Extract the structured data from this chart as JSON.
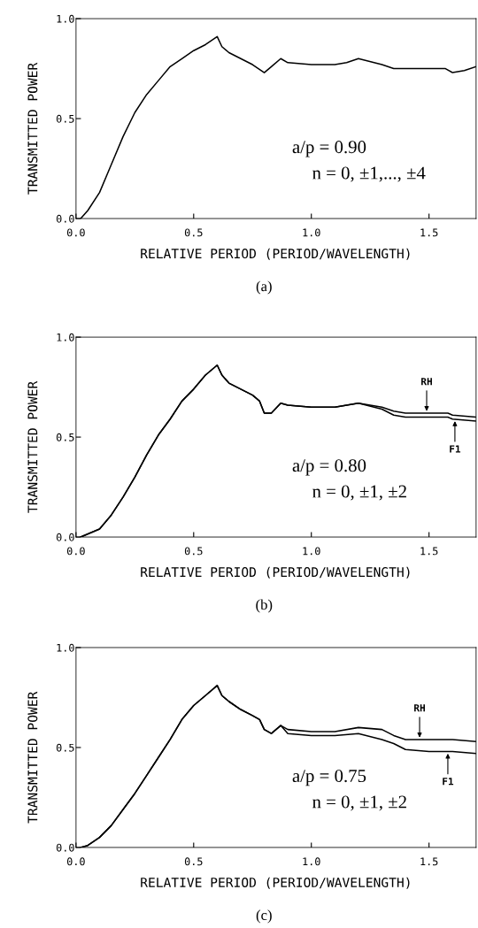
{
  "chart_data": [
    {
      "type": "line",
      "xlabel": "RELATIVE PERIOD (PERIOD/WAVELENGTH)",
      "ylabel": "TRANSMITTED POWER",
      "xlim": [
        0,
        1.7
      ],
      "ylim": [
        0,
        1
      ],
      "grid": false,
      "legend": false,
      "xticks": [
        {
          "value": 0,
          "label": "0.0"
        },
        {
          "value": 0.5,
          "label": "0.5"
        },
        {
          "value": 1,
          "label": "1.0"
        },
        {
          "value": 1.5,
          "label": "1.5"
        }
      ],
      "yticks": [
        {
          "value": 0,
          "label": "0.0"
        },
        {
          "value": 0.5,
          "label": "0.5"
        },
        {
          "value": 1,
          "label": "1.0"
        }
      ],
      "series": [
        {
          "color": "#000000",
          "x": [
            0.02,
            0.05,
            0.1,
            0.15,
            0.2,
            0.25,
            0.3,
            0.35,
            0.4,
            0.45,
            0.5,
            0.55,
            0.6,
            0.62,
            0.65,
            0.7,
            0.75,
            0.8,
            0.83,
            0.87,
            0.9,
            1.0,
            1.1,
            1.15,
            1.2,
            1.3,
            1.35,
            1.5,
            1.57,
            1.6,
            1.65,
            1.7
          ],
          "values": [
            0,
            0.04,
            0.13,
            0.27,
            0.41,
            0.53,
            0.62,
            0.69,
            0.76,
            0.8,
            0.84,
            0.87,
            0.91,
            0.86,
            0.83,
            0.8,
            0.77,
            0.73,
            0.76,
            0.8,
            0.78,
            0.77,
            0.77,
            0.78,
            0.8,
            0.77,
            0.75,
            0.75,
            0.75,
            0.73,
            0.74,
            0.76
          ]
        }
      ],
      "annotations": [
        "a/p = 0.90",
        "n = 0, ±1,..., ±4",
        "(a)"
      ]
    },
    {
      "type": "line",
      "xlabel": "RELATIVE PERIOD (PERIOD/WAVELENGTH)",
      "ylabel": "TRANSMITTED POWER",
      "xlim": [
        0,
        1.7
      ],
      "ylim": [
        0,
        1
      ],
      "grid": false,
      "legend": false,
      "xticks": [
        {
          "value": 0,
          "label": "0.0"
        },
        {
          "value": 0.5,
          "label": "0.5"
        },
        {
          "value": 1,
          "label": "1.0"
        },
        {
          "value": 1.5,
          "label": "1.5"
        }
      ],
      "yticks": [
        {
          "value": 0,
          "label": "0.0"
        },
        {
          "value": 0.5,
          "label": "0.5"
        },
        {
          "value": 1,
          "label": "1.0"
        }
      ],
      "series": [
        {
          "color": "#000000",
          "x": [
            0.02,
            0.1,
            0.15,
            0.2,
            0.25,
            0.3,
            0.35,
            0.4,
            0.45,
            0.5,
            0.55,
            0.6,
            0.62,
            0.65,
            0.7,
            0.75,
            0.78,
            0.8,
            0.83,
            0.87,
            0.9,
            1.0,
            1.1,
            1.2,
            1.3,
            1.35,
            1.4,
            1.5,
            1.58,
            1.6,
            1.7
          ],
          "values": [
            0,
            0.04,
            0.11,
            0.2,
            0.3,
            0.41,
            0.51,
            0.59,
            0.68,
            0.74,
            0.81,
            0.86,
            0.81,
            0.77,
            0.74,
            0.71,
            0.68,
            0.62,
            0.62,
            0.67,
            0.66,
            0.65,
            0.65,
            0.67,
            0.65,
            0.63,
            0.62,
            0.62,
            0.62,
            0.61,
            0.6
          ]
        },
        {
          "color": "#000000",
          "x": [
            0.02,
            0.1,
            0.15,
            0.2,
            0.25,
            0.3,
            0.35,
            0.4,
            0.45,
            0.5,
            0.55,
            0.6,
            0.62,
            0.65,
            0.7,
            0.75,
            0.78,
            0.8,
            0.83,
            0.87,
            0.9,
            1.0,
            1.1,
            1.2,
            1.3,
            1.35,
            1.4,
            1.5,
            1.58,
            1.6,
            1.7
          ],
          "values": [
            0,
            0.04,
            0.11,
            0.2,
            0.3,
            0.41,
            0.51,
            0.59,
            0.68,
            0.74,
            0.81,
            0.86,
            0.81,
            0.77,
            0.74,
            0.71,
            0.68,
            0.62,
            0.62,
            0.67,
            0.66,
            0.65,
            0.65,
            0.67,
            0.64,
            0.61,
            0.6,
            0.6,
            0.6,
            0.59,
            0.58
          ]
        }
      ],
      "annotations": [
        {
          "text": "RH",
          "x": 1.49,
          "y": 0.62
        },
        {
          "text": "F1",
          "x": 1.61,
          "y": 0.59
        },
        "a/p = 0.80",
        "n = 0, ±1, ±2",
        "(b)"
      ]
    },
    {
      "type": "line",
      "xlabel": "RELATIVE PERIOD (PERIOD/WAVELENGTH)",
      "ylabel": "TRANSMITTED POWER",
      "xlim": [
        0,
        1.7
      ],
      "ylim": [
        0,
        1
      ],
      "grid": false,
      "legend": false,
      "xticks": [
        {
          "value": 0,
          "label": "0.0"
        },
        {
          "value": 0.5,
          "label": "0.5"
        },
        {
          "value": 1,
          "label": "1.0"
        },
        {
          "value": 1.5,
          "label": "1.5"
        }
      ],
      "yticks": [
        {
          "value": 0,
          "label": "0.0"
        },
        {
          "value": 0.5,
          "label": "0.5"
        },
        {
          "value": 1,
          "label": "1.0"
        }
      ],
      "series": [
        {
          "color": "#000000",
          "x": [
            0.02,
            0.05,
            0.1,
            0.15,
            0.2,
            0.25,
            0.3,
            0.35,
            0.4,
            0.45,
            0.5,
            0.55,
            0.6,
            0.62,
            0.65,
            0.7,
            0.75,
            0.78,
            0.8,
            0.83,
            0.87,
            0.9,
            1.0,
            1.1,
            1.2,
            1.3,
            1.35,
            1.4,
            1.5,
            1.58,
            1.6,
            1.7
          ],
          "values": [
            0,
            0.01,
            0.05,
            0.11,
            0.19,
            0.27,
            0.36,
            0.45,
            0.54,
            0.64,
            0.71,
            0.76,
            0.81,
            0.76,
            0.73,
            0.69,
            0.66,
            0.64,
            0.59,
            0.57,
            0.61,
            0.59,
            0.58,
            0.58,
            0.6,
            0.59,
            0.56,
            0.54,
            0.54,
            0.54,
            0.54,
            0.53
          ]
        },
        {
          "color": "#000000",
          "x": [
            0.02,
            0.05,
            0.1,
            0.15,
            0.2,
            0.25,
            0.3,
            0.35,
            0.4,
            0.45,
            0.5,
            0.55,
            0.6,
            0.62,
            0.65,
            0.7,
            0.75,
            0.78,
            0.8,
            0.83,
            0.87,
            0.9,
            1.0,
            1.1,
            1.2,
            1.3,
            1.35,
            1.4,
            1.5,
            1.6,
            1.7
          ],
          "values": [
            0,
            0.01,
            0.05,
            0.11,
            0.19,
            0.27,
            0.36,
            0.45,
            0.54,
            0.64,
            0.71,
            0.76,
            0.81,
            0.76,
            0.73,
            0.69,
            0.66,
            0.64,
            0.59,
            0.57,
            0.61,
            0.57,
            0.56,
            0.56,
            0.57,
            0.54,
            0.52,
            0.49,
            0.48,
            0.48,
            0.47
          ]
        }
      ],
      "annotations": [
        {
          "text": "RH",
          "x": 1.46,
          "y": 0.54
        },
        {
          "text": "F1",
          "x": 1.58,
          "y": 0.48
        },
        "a/p = 0.75",
        "n = 0, ±1, ±2",
        "(c)"
      ]
    }
  ]
}
